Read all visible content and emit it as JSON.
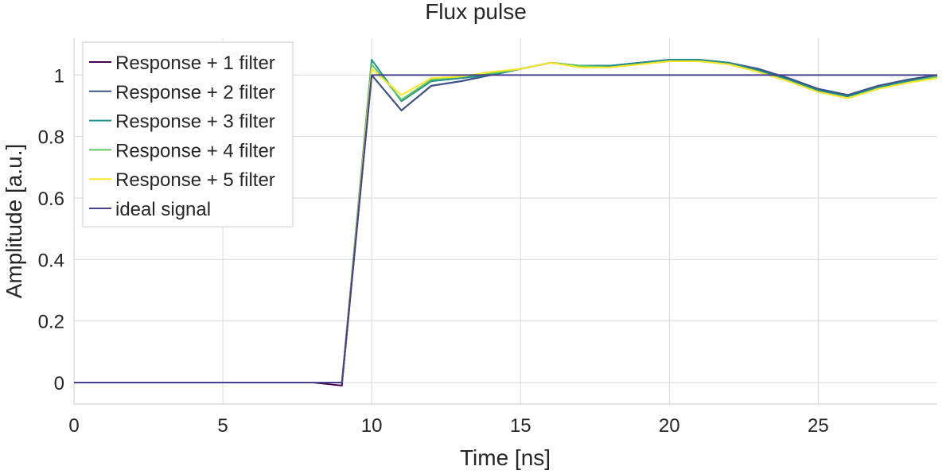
{
  "chart_data": {
    "type": "line",
    "title": "Flux pulse",
    "xlabel": "Time [ns]",
    "ylabel": "Amplitude [a.u.]",
    "xlim": [
      0,
      29
    ],
    "ylim": [
      -0.07,
      1.12
    ],
    "x_ticks": [
      0,
      5,
      10,
      15,
      20,
      25
    ],
    "y_ticks": [
      0,
      0.2,
      0.4,
      0.6,
      0.8,
      1
    ],
    "grid": true,
    "legend_position": "top-left",
    "x": [
      0,
      1,
      2,
      3,
      4,
      5,
      6,
      7,
      8,
      9,
      10,
      11,
      12,
      13,
      14,
      15,
      16,
      17,
      18,
      19,
      20,
      21,
      22,
      23,
      24,
      25,
      26,
      27,
      28,
      29
    ],
    "series": [
      {
        "name": "Response + 1 filter",
        "color": "#440154",
        "values": [
          0,
          0,
          0,
          0,
          0,
          0,
          0,
          0,
          0,
          -0.01,
          1.0,
          0.885,
          0.965,
          0.98,
          1.0,
          1.02,
          1.04,
          1.03,
          1.03,
          1.04,
          1.05,
          1.05,
          1.04,
          1.02,
          0.99,
          0.955,
          0.935,
          0.965,
          0.985,
          1.0
        ]
      },
      {
        "name": "Response + 2 filter",
        "color": "#3b528b",
        "values": [
          0,
          0,
          0,
          0,
          0,
          0,
          0,
          0,
          0,
          0,
          1.0,
          0.885,
          0.965,
          0.98,
          1.0,
          1.02,
          1.04,
          1.03,
          1.03,
          1.04,
          1.05,
          1.05,
          1.04,
          1.02,
          0.99,
          0.955,
          0.935,
          0.965,
          0.985,
          1.0
        ]
      },
      {
        "name": "Response + 3 filter",
        "color": "#21918c",
        "values": [
          0,
          0,
          0,
          0,
          0,
          0,
          0,
          0,
          0,
          0,
          1.05,
          0.915,
          0.98,
          0.99,
          1.0,
          1.02,
          1.04,
          1.03,
          1.03,
          1.04,
          1.05,
          1.05,
          1.04,
          1.015,
          0.985,
          0.95,
          0.93,
          0.96,
          0.98,
          0.995
        ]
      },
      {
        "name": "Response + 4 filter",
        "color": "#5ec962",
        "values": [
          0,
          0,
          0,
          0,
          0,
          0,
          0,
          0,
          0,
          0,
          1.035,
          0.92,
          0.985,
          0.995,
          1.005,
          1.02,
          1.04,
          1.03,
          1.025,
          1.035,
          1.045,
          1.045,
          1.035,
          1.01,
          0.98,
          0.945,
          0.925,
          0.955,
          0.975,
          0.995
        ]
      },
      {
        "name": "Response + 5 filter",
        "color": "#fde725",
        "values": [
          0,
          0,
          0,
          0,
          0,
          0,
          0,
          0,
          0,
          0,
          1.02,
          0.935,
          0.99,
          0.995,
          1.01,
          1.02,
          1.04,
          1.025,
          1.025,
          1.035,
          1.045,
          1.045,
          1.035,
          1.01,
          0.98,
          0.945,
          0.925,
          0.955,
          0.975,
          0.99
        ]
      },
      {
        "name": "ideal signal",
        "color": "#47408e",
        "values": [
          0,
          0,
          0,
          0,
          0,
          0,
          0,
          0,
          0,
          0,
          1,
          1,
          1,
          1,
          1,
          1,
          1,
          1,
          1,
          1,
          1,
          1,
          1,
          1,
          1,
          1,
          1,
          1,
          1,
          1
        ]
      }
    ]
  }
}
